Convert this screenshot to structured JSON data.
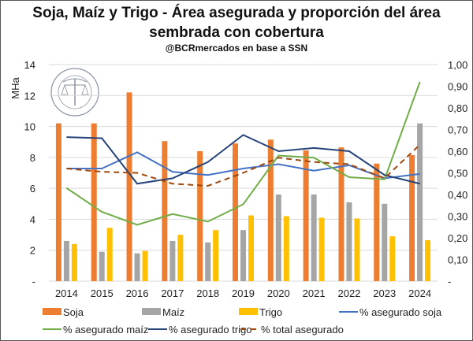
{
  "title_line1": "Soja, Maíz y Trigo - Área asegurada y proporción del área",
  "title_line2": "sembrada con cobertura",
  "subtitle": "@BCRmercados en base a SSN",
  "logo_text": "BOLSA DE COMERCIO DE ROSARIO",
  "chart_data": {
    "type": "bar+line",
    "ylabel": "MHa",
    "ylim": [
      0,
      14
    ],
    "y_ticks": [
      "-",
      "2",
      "4",
      "6",
      "8",
      "10",
      "12",
      "14"
    ],
    "y2lim": [
      0,
      1
    ],
    "y2_ticks": [
      "-",
      "0,10",
      "0,20",
      "0,30",
      "0,40",
      "0,50",
      "0,60",
      "0,70",
      "0,80",
      "0,90",
      "1,00"
    ],
    "grid": true,
    "legend_placement": "bottom",
    "categories": [
      "2014",
      "2015",
      "2016",
      "2017",
      "2018",
      "2019",
      "2020",
      "2021",
      "2022",
      "2023",
      "2024"
    ],
    "bar_series": [
      {
        "name": "Soja",
        "color": "#ED7D31",
        "values": [
          10.2,
          10.2,
          12.2,
          9.05,
          8.4,
          8.9,
          9.15,
          8.45,
          8.65,
          7.6,
          8.15
        ]
      },
      {
        "name": "Maíz",
        "color": "#A5A5A5",
        "values": [
          2.6,
          1.9,
          1.8,
          2.6,
          2.5,
          3.3,
          5.6,
          5.6,
          5.1,
          5.0,
          10.2
        ]
      },
      {
        "name": "Trigo",
        "color": "#FFC000",
        "values": [
          2.4,
          3.45,
          1.95,
          3.0,
          3.3,
          4.25,
          4.2,
          4.1,
          4.05,
          2.9,
          2.65
        ]
      }
    ],
    "line_series": [
      {
        "name": "% asegurado soja",
        "color": "#4472C4",
        "dash": false,
        "values": [
          0.52,
          0.52,
          0.595,
          0.505,
          0.49,
          0.52,
          0.54,
          0.51,
          0.535,
          0.475,
          0.495
        ]
      },
      {
        "name": "% asegurado maíz",
        "color": "#70AD47",
        "dash": false,
        "values": [
          0.43,
          0.32,
          0.26,
          0.31,
          0.275,
          0.355,
          0.58,
          0.57,
          0.48,
          0.47,
          0.92
        ]
      },
      {
        "name": "% asegurado trigo",
        "color": "#264478",
        "dash": false,
        "values": [
          0.665,
          0.66,
          0.45,
          0.475,
          0.55,
          0.675,
          0.6,
          0.615,
          0.6,
          0.49,
          0.45
        ]
      },
      {
        "name": "% total asegurado",
        "color": "#9E480E",
        "dash": true,
        "values": [
          0.52,
          0.505,
          0.5,
          0.45,
          0.44,
          0.5,
          0.57,
          0.55,
          0.54,
          0.475,
          0.63
        ]
      }
    ]
  }
}
